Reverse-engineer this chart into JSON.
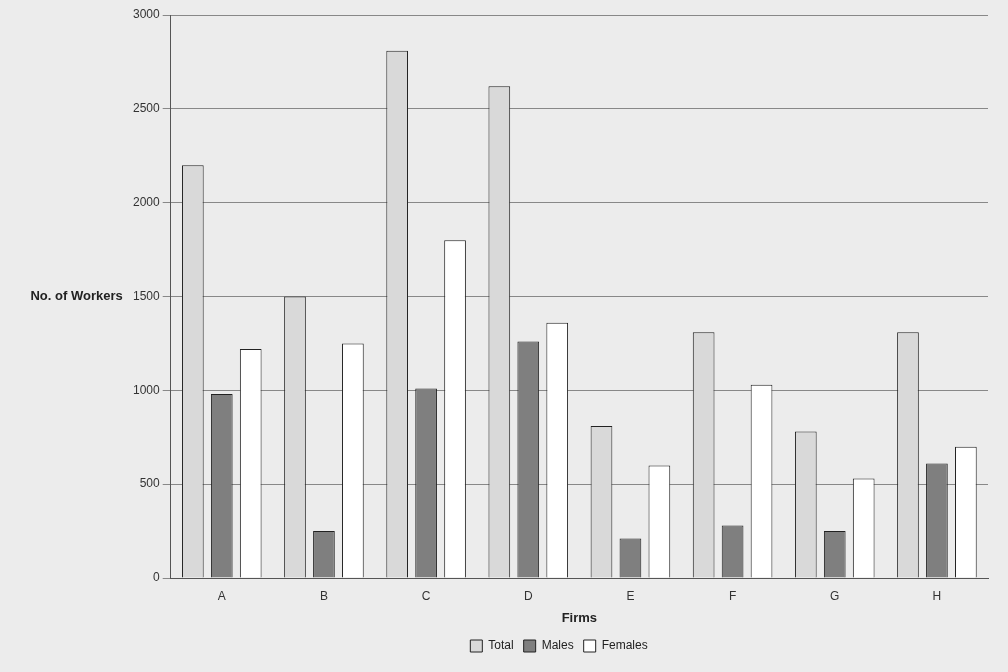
{
  "chart_data": {
    "type": "bar",
    "xlabel": "Firms",
    "ylabel": "No. of Workers",
    "categories": [
      "A",
      "B",
      "C",
      "D",
      "E",
      "F",
      "G",
      "H"
    ],
    "series": [
      {
        "name": "Total",
        "color": "#d9d9d9",
        "values": [
          2200,
          1500,
          2810,
          2620,
          810,
          1310,
          780,
          1310
        ]
      },
      {
        "name": "Males",
        "color": "#7f7f7f",
        "values": [
          980,
          250,
          1010,
          1260,
          210,
          280,
          250,
          610
        ]
      },
      {
        "name": "Females",
        "color": "#ffffff",
        "values": [
          1220,
          1250,
          1800,
          1360,
          600,
          1030,
          530,
          700
        ]
      }
    ],
    "ylim": [
      0,
      3000
    ],
    "yticks": [
      0,
      500,
      1000,
      1500,
      2000,
      2500,
      3000
    ],
    "grid": "y",
    "legend": "bottom"
  }
}
